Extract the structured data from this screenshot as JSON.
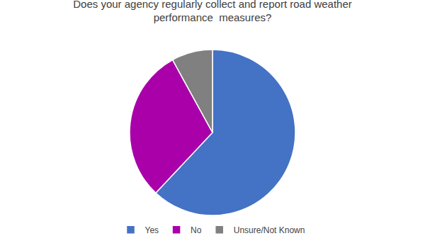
{
  "chart_data": {
    "type": "pie",
    "title": "Does your agency regularly collect and report road weather\nperformance  measures?",
    "categories": [
      "Yes",
      "No",
      "Unsure/Not Known"
    ],
    "values": [
      62,
      30,
      8
    ],
    "colors": [
      "#4472C4",
      "#AA00AA",
      "#808080"
    ],
    "legend": "bottom"
  }
}
